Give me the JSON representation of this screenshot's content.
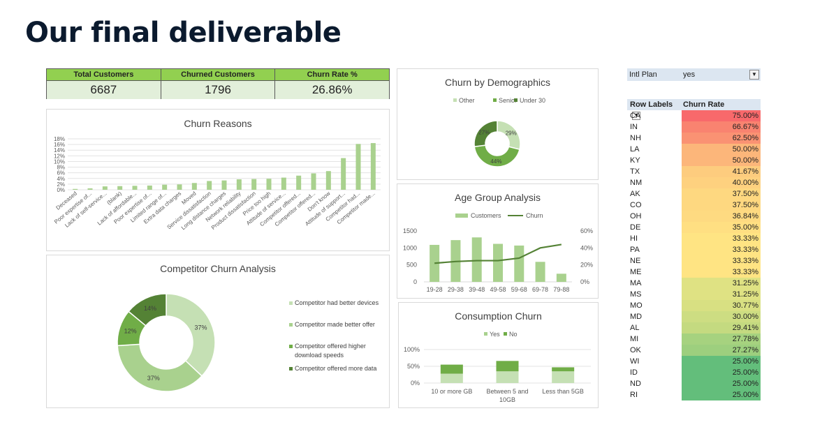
{
  "title": "Our final deliverable",
  "kpis": [
    {
      "label": "Total Customers",
      "value": "6687"
    },
    {
      "label": "Churned Customers",
      "value": "1796"
    },
    {
      "label": "Churn Rate %",
      "value": "26.86%"
    }
  ],
  "colors": {
    "light_green": "#a9d18e",
    "mid_green": "#70ad47",
    "dark_green": "#548235",
    "pale_green": "#c5e0b4",
    "kpi_header": "#92d050",
    "kpi_cell": "#e2efda"
  },
  "pivot": {
    "filter_label": "Intl Plan",
    "filter_value": "yes",
    "filter_icon": "filter-icon",
    "col_state": "Row Labels",
    "col_rate": "Churn Rate",
    "rows": [
      {
        "state": "CA",
        "rate": "75.00%",
        "color": "#f8696b"
      },
      {
        "state": "IN",
        "rate": "66.67%",
        "color": "#f98370"
      },
      {
        "state": "NH",
        "rate": "62.50%",
        "color": "#fa9273"
      },
      {
        "state": "LA",
        "rate": "50.00%",
        "color": "#fcb67a"
      },
      {
        "state": "KY",
        "rate": "50.00%",
        "color": "#fcb67a"
      },
      {
        "state": "TX",
        "rate": "41.67%",
        "color": "#fdcc7e"
      },
      {
        "state": "NM",
        "rate": "40.00%",
        "color": "#fed17f"
      },
      {
        "state": "AK",
        "rate": "37.50%",
        "color": "#fed880"
      },
      {
        "state": "CO",
        "rate": "37.50%",
        "color": "#fed880"
      },
      {
        "state": "OH",
        "rate": "36.84%",
        "color": "#feda81"
      },
      {
        "state": "DE",
        "rate": "35.00%",
        "color": "#ffdf82"
      },
      {
        "state": "HI",
        "rate": "33.33%",
        "color": "#ffe483"
      },
      {
        "state": "PA",
        "rate": "33.33%",
        "color": "#ffe483"
      },
      {
        "state": "NE",
        "rate": "33.33%",
        "color": "#ffe483"
      },
      {
        "state": "ME",
        "rate": "33.33%",
        "color": "#ffe483"
      },
      {
        "state": "MA",
        "rate": "31.25%",
        "color": "#dfe283"
      },
      {
        "state": "MS",
        "rate": "31.25%",
        "color": "#dfe283"
      },
      {
        "state": "MO",
        "rate": "30.77%",
        "color": "#d8e082"
      },
      {
        "state": "MD",
        "rate": "30.00%",
        "color": "#cddd82"
      },
      {
        "state": "AL",
        "rate": "29.41%",
        "color": "#c4da80"
      },
      {
        "state": "MI",
        "rate": "27.78%",
        "color": "#a6d27f"
      },
      {
        "state": "OK",
        "rate": "27.27%",
        "color": "#9dcf7e"
      },
      {
        "state": "WI",
        "rate": "25.00%",
        "color": "#63be7b"
      },
      {
        "state": "ID",
        "rate": "25.00%",
        "color": "#63be7b"
      },
      {
        "state": "ND",
        "rate": "25.00%",
        "color": "#63be7b"
      },
      {
        "state": "RI",
        "rate": "25.00%",
        "color": "#63be7b"
      }
    ]
  },
  "chart_data": [
    {
      "id": "churn_reasons",
      "type": "bar",
      "title": "Churn Reasons",
      "categories": [
        "Deceased",
        "Poor expertise of...",
        "Lack of self-service...",
        "(blank)",
        "Lack of affordable...",
        "Poor expertise of...",
        "Limited range of...",
        "Extra data charges",
        "Moved",
        "Service dissatisfaction",
        "Long distance charges",
        "Network reliability",
        "Product dissatisfaction",
        "Price too high",
        "Attitude of service...",
        "Competitor offered...",
        "Competitor offered...",
        "Don't know",
        "Attitude of support...",
        "Competitor had...",
        "Competitor made..."
      ],
      "values": [
        0.3,
        0.5,
        1.2,
        1.3,
        1.4,
        1.5,
        1.8,
        1.9,
        2.4,
        3.1,
        3.3,
        3.7,
        3.8,
        3.9,
        4.3,
        5.0,
        5.8,
        6.6,
        11.2,
        16.2,
        16.5
      ],
      "yticks": [
        "0%",
        "2%",
        "4%",
        "6%",
        "8%",
        "10%",
        "12%",
        "14%",
        "16%",
        "18%"
      ],
      "ylim": [
        0,
        18
      ]
    },
    {
      "id": "churn_demographics",
      "type": "pie",
      "title": "Churn by Demographics",
      "legend": [
        "Other",
        "Senior",
        "Under 30"
      ],
      "values": [
        29,
        44,
        27
      ],
      "labels": [
        "29%",
        "44%",
        "27%"
      ]
    },
    {
      "id": "age_group",
      "type": "bar",
      "title": "Age Group Analysis",
      "categories": [
        "19-28",
        "29-38",
        "39-48",
        "49-58",
        "59-68",
        "69-78",
        "79-88"
      ],
      "series": [
        {
          "name": "Customers",
          "values": [
            1090,
            1230,
            1310,
            1120,
            1070,
            590,
            240
          ]
        },
        {
          "name": "Churn",
          "values": [
            22,
            24,
            25,
            25,
            28,
            40,
            44
          ]
        }
      ],
      "y_left_ticks": [
        "0",
        "500",
        "1000",
        "1500"
      ],
      "y_right_ticks": [
        "0%",
        "20%",
        "40%",
        "60%"
      ],
      "ylim": [
        0,
        1500
      ],
      "y2lim": [
        0,
        60
      ]
    },
    {
      "id": "competitor_churn",
      "type": "pie",
      "title": "Competitor Churn Analysis",
      "legend": [
        "Competitor had better devices",
        "Competitor made better offer",
        "Competitor offered higher download speeds",
        "Competitor offered more data"
      ],
      "values": [
        37,
        37,
        12,
        14
      ],
      "labels": [
        "37%",
        "37%",
        "12%",
        "14%"
      ]
    },
    {
      "id": "consumption_churn",
      "type": "bar",
      "title": "Consumption Churn",
      "categories": [
        "10 or more GB",
        "Between 5 and 10GB",
        "Less than 5GB"
      ],
      "series": [
        {
          "name": "Yes",
          "values": [
            28,
            35,
            35
          ]
        },
        {
          "name": "No",
          "values": [
            27,
            31,
            12
          ]
        }
      ],
      "yticks": [
        "0%",
        "50%",
        "100%"
      ],
      "ylim": [
        0,
        100
      ]
    }
  ]
}
